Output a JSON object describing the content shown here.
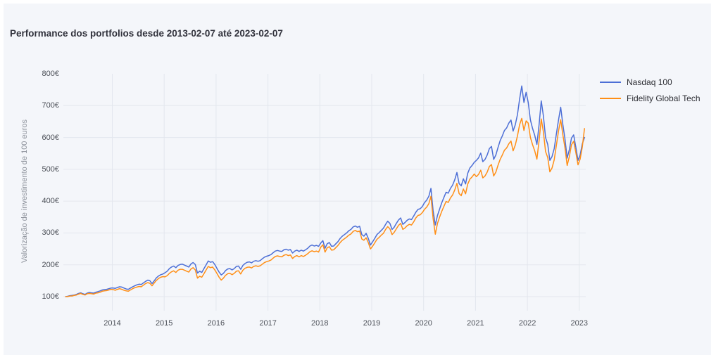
{
  "title": "Performance dos portfolios desde 2013-02-07 até 2023-02-07",
  "colors": {
    "panel_background": "#f4f6fa",
    "page_background": "#ffffff",
    "grid": "#e3e7ee",
    "nasdaq_line": "#4d6fd6",
    "fidelity_line": "#ff8f17",
    "title_text": "#31323c",
    "tick_text": "#4c5058",
    "axis_title_text": "#8d929b",
    "legend_text": "#2c2d33"
  },
  "chart_data": {
    "type": "line",
    "title": "Performance dos portfolios desde 2013-02-07 até 2023-02-07",
    "xlabel": "",
    "ylabel": "Valorização de investimento de 100 euros",
    "legend_position": "right",
    "grid": true,
    "grid_color": "#e3e7ee",
    "x_start_date": "2013-02-07",
    "x_end_date": "2023-02-07",
    "x_start_year": 2013.1,
    "points_per_year": 24,
    "xlim_years": [
      2013.02,
      2023.17
    ],
    "ylim": [
      49,
      805
    ],
    "x_tick_years": [
      2014,
      2015,
      2016,
      2017,
      2018,
      2019,
      2020,
      2021,
      2022,
      2023
    ],
    "x_tick_labels": [
      "2014",
      "2015",
      "2016",
      "2017",
      "2018",
      "2019",
      "2020",
      "2021",
      "2022",
      "2023"
    ],
    "y_tick_values": [
      100,
      200,
      300,
      400,
      500,
      600,
      700,
      800
    ],
    "y_tick_labels": [
      "100€",
      "200€",
      "300€",
      "400€",
      "500€",
      "600€",
      "700€",
      "800€"
    ],
    "y_grid_values": [
      100,
      200,
      300,
      400,
      500,
      600,
      700
    ],
    "series": [
      {
        "name": "Nasdaq 100",
        "data_name": "nasdaq-100-line",
        "color": "#4d6fd6",
        "values": [
          100,
          101,
          103,
          104,
          105,
          107,
          110,
          112,
          109,
          107,
          111,
          113,
          112,
          111,
          114,
          116,
          118,
          121,
          122,
          123,
          125,
          127,
          127,
          126,
          129,
          131,
          130,
          127,
          124,
          123,
          127,
          131,
          134,
          137,
          139,
          138,
          143,
          148,
          152,
          150,
          141,
          150,
          159,
          165,
          169,
          171,
          175,
          180,
          188,
          193,
          196,
          191,
          198,
          201,
          202,
          199,
          196,
          193,
          203,
          207,
          201,
          174,
          180,
          176,
          188,
          200,
          212,
          208,
          210,
          201,
          189,
          177,
          168,
          173,
          182,
          187,
          188,
          184,
          188,
          195,
          196,
          186,
          198,
          204,
          208,
          209,
          206,
          211,
          213,
          211,
          213,
          219,
          224,
          227,
          229,
          232,
          238,
          243,
          245,
          243,
          242,
          247,
          249,
          246,
          248,
          237,
          243,
          246,
          242,
          246,
          243,
          247,
          252,
          259,
          262,
          259,
          261,
          258,
          268,
          276,
          252,
          266,
          270,
          258,
          259,
          266,
          273,
          283,
          290,
          295,
          300,
          307,
          311,
          319,
          322,
          318,
          321,
          295,
          290,
          299,
          283,
          262,
          272,
          283,
          295,
          301,
          308,
          315,
          327,
          337,
          330,
          311,
          318,
          330,
          341,
          347,
          327,
          333,
          340,
          344,
          342,
          353,
          365,
          374,
          376,
          383,
          395,
          403,
          415,
          440,
          370,
          325,
          355,
          375,
          395,
          412,
          428,
          425,
          440,
          450,
          467,
          490,
          455,
          448,
          470,
          454,
          487,
          504,
          512,
          522,
          528,
          536,
          551,
          524,
          531,
          545,
          565,
          572,
          531,
          545,
          568,
          590,
          605,
          622,
          630,
          645,
          655,
          620,
          640,
          672,
          720,
          762,
          710,
          742,
          710,
          655,
          628,
          607,
          578,
          640,
          715,
          668,
          600,
          578,
          528,
          540,
          565,
          610,
          655,
          695,
          640,
          595,
          535,
          562,
          598,
          608,
          570,
          528,
          545,
          580,
          600
        ]
      },
      {
        "name": "Fidelity Global Tech",
        "data_name": "fidelity-global-tech-line",
        "color": "#ff8f17",
        "values": [
          100,
          100,
          102,
          102,
          104,
          105,
          108,
          110,
          107,
          105,
          109,
          110,
          109,
          108,
          111,
          112,
          114,
          117,
          118,
          119,
          121,
          123,
          122,
          120,
          123,
          125,
          123,
          120,
          118,
          117,
          121,
          125,
          128,
          130,
          132,
          131,
          136,
          141,
          144,
          142,
          134,
          143,
          151,
          157,
          161,
          163,
          162,
          166,
          173,
          178,
          181,
          176,
          183,
          186,
          186,
          183,
          180,
          177,
          187,
          191,
          184,
          158,
          164,
          161,
          172,
          184,
          195,
          191,
          193,
          184,
          173,
          161,
          152,
          158,
          167,
          172,
          173,
          169,
          173,
          180,
          181,
          171,
          183,
          189,
          192,
          193,
          190,
          195,
          197,
          195,
          197,
          202,
          207,
          210,
          212,
          215,
          221,
          226,
          228,
          226,
          225,
          230,
          232,
          229,
          231,
          220,
          226,
          229,
          225,
          229,
          226,
          230,
          235,
          241,
          244,
          241,
          243,
          240,
          255,
          263,
          240,
          253,
          257,
          246,
          247,
          254,
          261,
          270,
          277,
          282,
          287,
          293,
          297,
          305,
          308,
          304,
          306,
          281,
          277,
          285,
          270,
          250,
          258,
          269,
          280,
          286,
          293,
          299,
          311,
          320,
          313,
          295,
          302,
          313,
          324,
          330,
          311,
          316,
          323,
          327,
          325,
          335,
          347,
          355,
          357,
          364,
          374,
          381,
          392,
          415,
          345,
          296,
          330,
          350,
          368,
          384,
          399,
          396,
          410,
          419,
          435,
          456,
          424,
          417,
          438,
          423,
          453,
          469,
          476,
          485,
          477,
          484,
          497,
          473,
          479,
          491,
          509,
          515,
          479,
          491,
          512,
          531,
          545,
          560,
          567,
          580,
          589,
          558,
          576,
          605,
          640,
          660,
          622,
          652,
          645,
          600,
          577,
          558,
          532,
          590,
          658,
          618,
          556,
          537,
          492,
          504,
          530,
          574,
          620,
          656,
          608,
          567,
          512,
          540,
          577,
          588,
          553,
          514,
          532,
          570,
          628
        ]
      }
    ]
  }
}
